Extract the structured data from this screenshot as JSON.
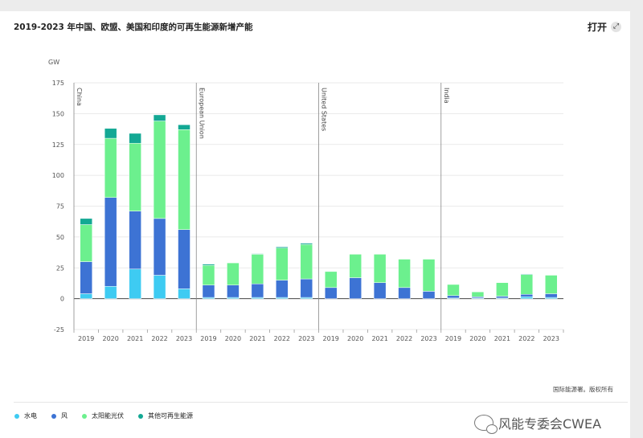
{
  "header": {
    "title": "2019-2023 年中国、欧盟、美国和印度的可再生能源新增产能",
    "open_label": "打开",
    "expand_icon": "expand-arrows-icon"
  },
  "footer": {
    "source": "国际能源署。版权所有"
  },
  "watermark": {
    "text": "风能专委会CWEA",
    "icon": "wechat-icon"
  },
  "legend": [
    {
      "name": "水电",
      "color": "#3ecbf2"
    },
    {
      "name": "风",
      "color": "#3d73d4"
    },
    {
      "name": "太阳能光伏",
      "color": "#6cf08e"
    },
    {
      "name": "其他可再生能源",
      "color": "#13a894"
    }
  ],
  "chart_data": {
    "type": "bar",
    "stacked": true,
    "title": "2019-2023 年中国、欧盟、美国和印度的可再生能源新增产能",
    "ylabel": "GW",
    "ylim": [
      -25,
      175
    ],
    "yticks": [
      175,
      150,
      125,
      100,
      75,
      50,
      25,
      0,
      -25
    ],
    "grid": true,
    "legend_position": "bottom-left",
    "categories": [
      "2019",
      "2020",
      "2021",
      "2022",
      "2023"
    ],
    "groups": [
      {
        "name": "China",
        "series": [
          {
            "name": "水电",
            "values": [
              4,
              10,
              24,
              19,
              8
            ]
          },
          {
            "name": "风",
            "values": [
              26,
              72,
              47,
              46,
              48
            ]
          },
          {
            "name": "太阳能光伏",
            "values": [
              30,
              48,
              55,
              79,
              81
            ]
          },
          {
            "name": "其他可再生能源",
            "values": [
              5,
              8,
              8,
              5,
              4
            ]
          }
        ]
      },
      {
        "name": "European Union",
        "series": [
          {
            "name": "水电",
            "values": [
              1,
              1,
              1,
              1,
              1
            ]
          },
          {
            "name": "风",
            "values": [
              10,
              10,
              11,
              14,
              15
            ]
          },
          {
            "name": "太阳能光伏",
            "values": [
              16,
              18,
              24,
              26,
              28
            ]
          },
          {
            "name": "其他可再生能源",
            "values": [
              1,
              0,
              0.5,
              1,
              1
            ]
          }
        ]
      },
      {
        "name": "United States",
        "series": [
          {
            "name": "水电",
            "values": [
              0,
              0,
              0,
              0,
              0
            ]
          },
          {
            "name": "风",
            "values": [
              9,
              17,
              13,
              9,
              6
            ]
          },
          {
            "name": "太阳能光伏",
            "values": [
              13,
              19,
              23,
              23,
              26
            ]
          },
          {
            "name": "其他可再生能源",
            "values": [
              0,
              0,
              0,
              0,
              0
            ]
          }
        ]
      },
      {
        "name": "India",
        "series": [
          {
            "name": "水电",
            "values": [
              0.5,
              0.5,
              0.5,
              1.5,
              1
            ]
          },
          {
            "name": "风",
            "values": [
              2,
              1,
              1.5,
              2,
              3
            ]
          },
          {
            "name": "太阳能光伏",
            "values": [
              9,
              4,
              11,
              16,
              15
            ]
          },
          {
            "name": "其他可再生能源",
            "values": [
              0,
              0,
              0,
              0.5,
              0
            ]
          }
        ]
      }
    ]
  }
}
